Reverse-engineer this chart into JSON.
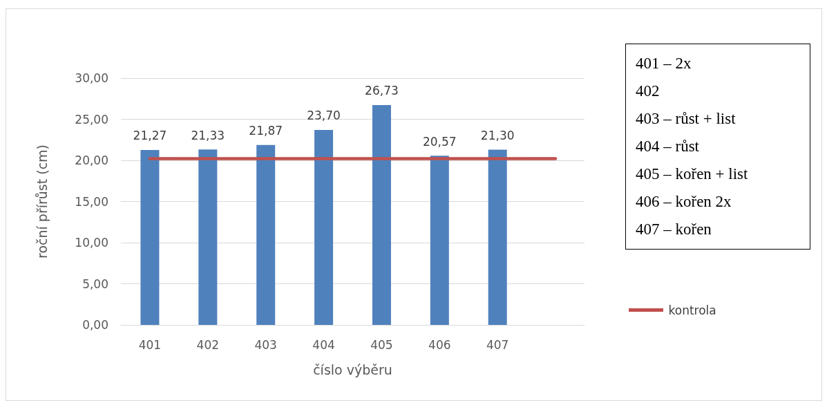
{
  "chart_data": {
    "type": "bar",
    "xlabel": "číslo výběru",
    "ylabel": "roční přírůst (cm)",
    "categories": [
      "401",
      "402",
      "403",
      "404",
      "405",
      "406",
      "407",
      null
    ],
    "series": [
      {
        "color": "#4f81bd",
        "values": [
          21.27,
          21.33,
          21.87,
          23.7,
          26.73,
          20.57,
          21.3,
          null
        ],
        "value_labels": [
          "21,27",
          "21,33",
          "21,87",
          "23,70",
          "26,73",
          "20,57",
          "21,30",
          null
        ]
      },
      {
        "type": "line",
        "name": "kontrola",
        "color": "#c0504d",
        "marker": "none",
        "values": [
          20.2,
          20.2,
          20.2,
          20.2,
          20.2,
          20.2,
          20.2,
          20.2
        ]
      }
    ],
    "ylim": [
      0,
      30
    ],
    "yticks": [
      {
        "value": 0,
        "label": "0,00"
      },
      {
        "value": 5,
        "label": "5,00"
      },
      {
        "value": 10,
        "label": "10,00"
      },
      {
        "value": 15,
        "label": "15,00"
      },
      {
        "value": 20,
        "label": "20,00"
      },
      {
        "value": 25,
        "label": "25,00"
      },
      {
        "value": 30,
        "label": "30,00"
      }
    ],
    "grid": "y",
    "legend": "right",
    "annotations": [
      "401 – 2x",
      "402",
      "403 – růst + list",
      "404 – růst",
      "405 – kořen + list",
      "406 – kořen 2x",
      "407 – kořen"
    ]
  }
}
